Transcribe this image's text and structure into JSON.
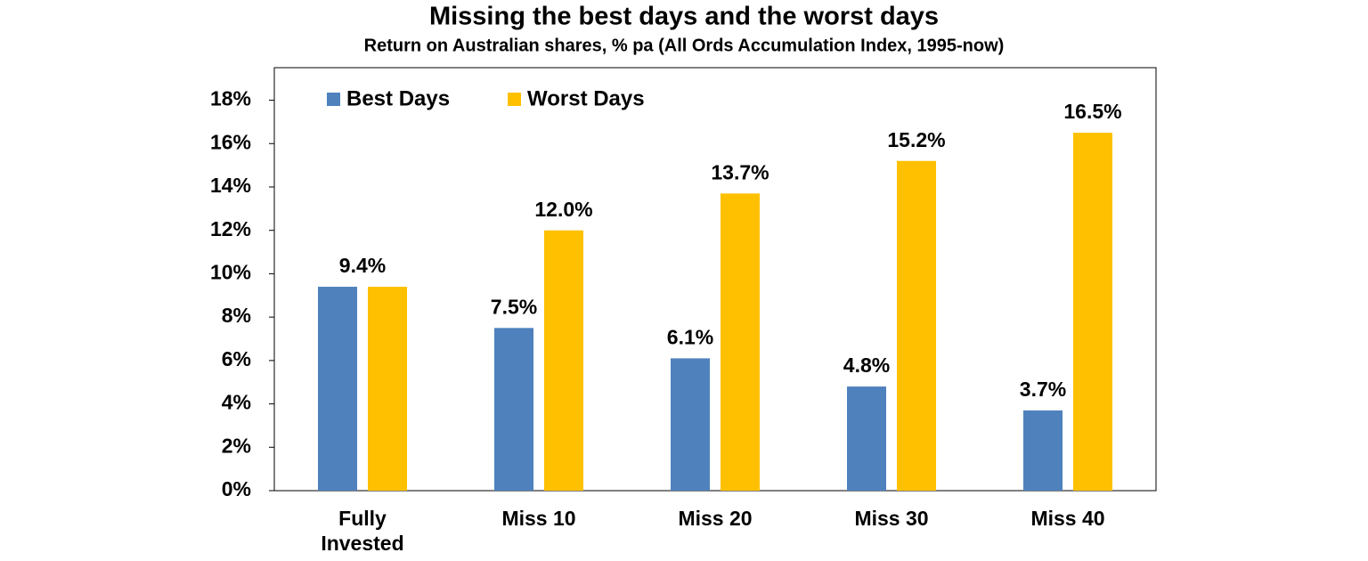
{
  "chart_data": {
    "type": "bar",
    "title": "Missing the best days and the worst days",
    "subtitle": "Return on Australian shares, % pa (All Ords Accumulation Index, 1995-now)",
    "categories": [
      "Fully Invested",
      "Miss 10",
      "Miss 20",
      "Miss 30",
      "Miss 40"
    ],
    "series": [
      {
        "name": "Best Days",
        "color": "#4f81bd",
        "values": [
          9.4,
          7.5,
          6.1,
          4.8,
          3.7
        ],
        "value_labels": [
          "9.4%",
          "7.5%",
          "6.1%",
          "4.8%",
          "3.7%"
        ]
      },
      {
        "name": "Worst Days",
        "color": "#ffc000",
        "values": [
          9.4,
          12.0,
          13.7,
          15.2,
          16.5
        ],
        "value_labels": [
          null,
          "12.0%",
          "13.7%",
          "15.2%",
          "16.5%"
        ]
      }
    ],
    "ylim": [
      0,
      19.5
    ],
    "yticks": [
      {
        "value": 0,
        "label": "0%"
      },
      {
        "value": 2,
        "label": "2%"
      },
      {
        "value": 4,
        "label": "4%"
      },
      {
        "value": 6,
        "label": "6%"
      },
      {
        "value": 8,
        "label": "8%"
      },
      {
        "value": 10,
        "label": "10%"
      },
      {
        "value": 12,
        "label": "12%"
      },
      {
        "value": 14,
        "label": "14%"
      },
      {
        "value": 16,
        "label": "16%"
      },
      {
        "value": 18,
        "label": "18%"
      }
    ],
    "grid": false,
    "legend": "top-left"
  }
}
